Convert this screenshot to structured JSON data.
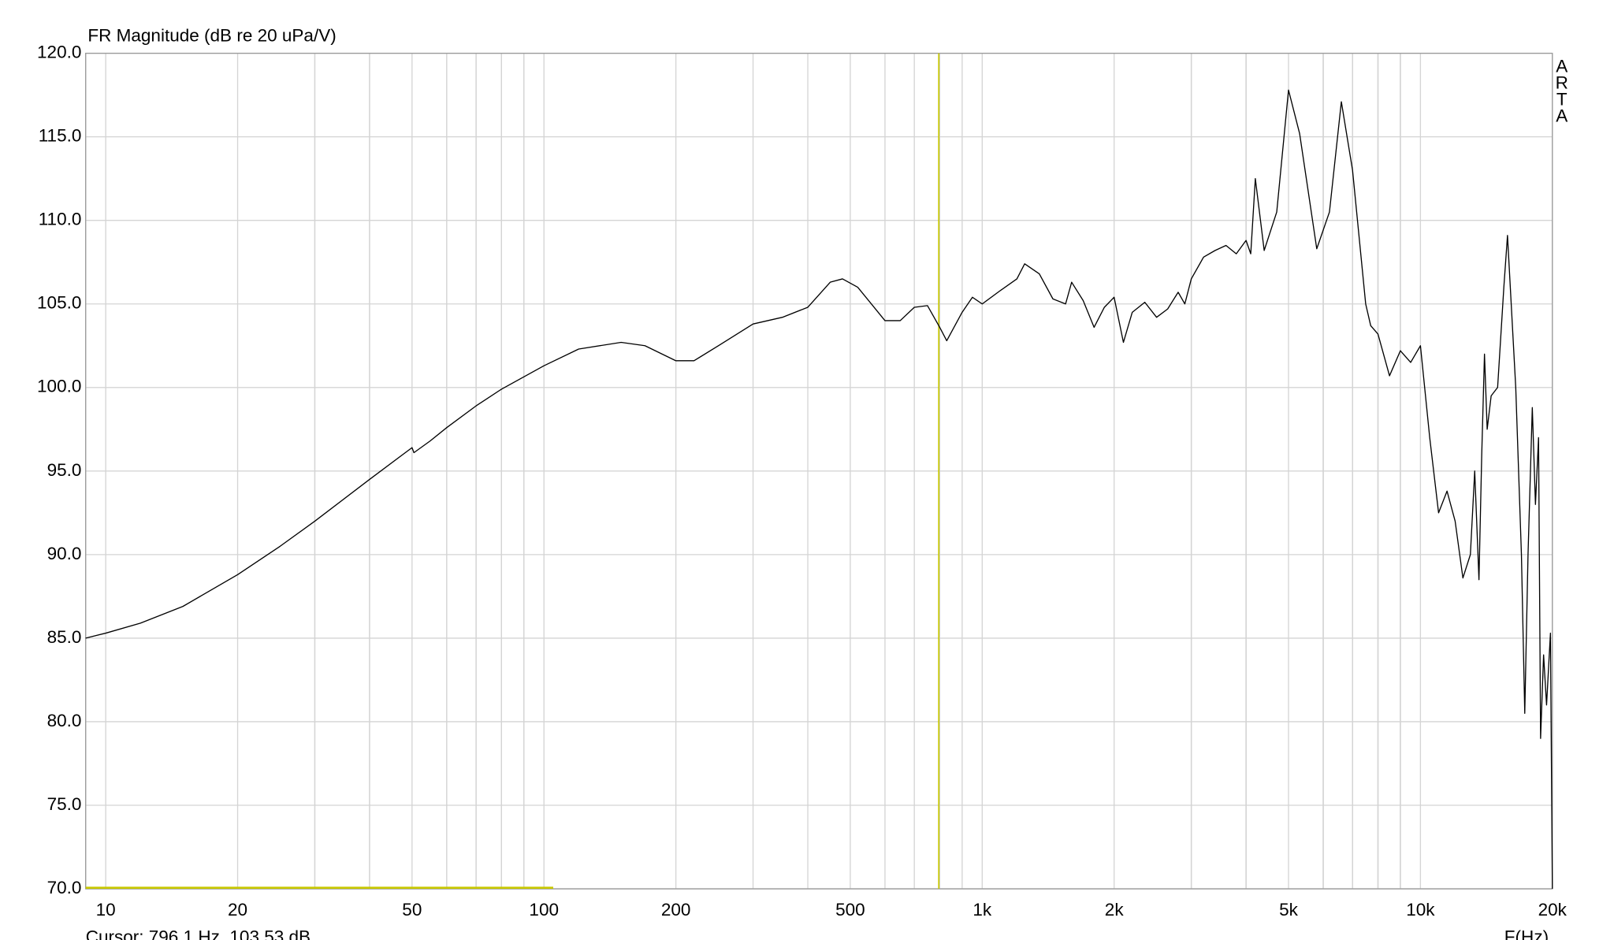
{
  "chart_data": {
    "type": "line",
    "title": "FR Magnitude (dB re 20 uPa/V)",
    "x_label": "F(Hz)",
    "watermark": "ARTA",
    "log_x": true,
    "grid": true,
    "color": "#000000",
    "xlim": [
      9,
      20000
    ],
    "ylim": [
      70,
      120
    ],
    "xticks": [
      10,
      20,
      50,
      100,
      200,
      500,
      {
        "value": 1000,
        "label": "1k"
      },
      {
        "value": 2000,
        "label": "2k"
      },
      {
        "value": 5000,
        "label": "5k"
      },
      {
        "value": 10000,
        "label": "10k"
      },
      {
        "value": 20000,
        "label": "20k"
      }
    ],
    "xminor": [
      9,
      30,
      40,
      60,
      70,
      80,
      90,
      300,
      400,
      600,
      700,
      800,
      900,
      3000,
      4000,
      6000,
      7000,
      8000,
      9000,
      30,
      40,
      60,
      70,
      80,
      90,
      3000,
      4000,
      6000,
      7000,
      8000,
      9000,
      3000,
      4000,
      6000,
      7000,
      8000,
      9000
    ],
    "yticks": [
      {
        "value": 70,
        "label": "70.0"
      },
      {
        "value": 75,
        "label": "75.0"
      },
      {
        "value": 80,
        "label": "80.0"
      },
      {
        "value": 85,
        "label": "85.0"
      },
      {
        "value": 90,
        "label": "90.0"
      },
      {
        "value": 95,
        "label": "95.0"
      },
      {
        "value": 100,
        "label": "100.0"
      },
      {
        "value": 105,
        "label": "105.0"
      },
      {
        "value": 110,
        "label": "110.0"
      },
      {
        "value": 115,
        "label": "115.0"
      },
      {
        "value": 120,
        "label": "120.0"
      }
    ],
    "cursor": {
      "x": 796.1,
      "y": 103.53,
      "color": "#c8c800",
      "label": "Cursor:   796.1 Hz, 103.53 dB"
    },
    "range_marker": {
      "from": 9,
      "to": 105,
      "color": "#c8c800"
    },
    "x": [
      9,
      10,
      12,
      15,
      20,
      25,
      30,
      40,
      50,
      50.5,
      55,
      60,
      70,
      80,
      100,
      120,
      150,
      170,
      200,
      220,
      250,
      300,
      350,
      400,
      450,
      480,
      520,
      600,
      650,
      700,
      750,
      800,
      830,
      900,
      950,
      1000,
      1100,
      1200,
      1250,
      1350,
      1450,
      1550,
      1600,
      1700,
      1800,
      1900,
      2000,
      2100,
      2200,
      2350,
      2500,
      2650,
      2800,
      2900,
      3000,
      3200,
      3400,
      3600,
      3800,
      4000,
      4100,
      4200,
      4400,
      4700,
      5000,
      5300,
      5800,
      6200,
      6600,
      7000,
      7500,
      7700,
      8000,
      8500,
      9000,
      9500,
      10000,
      10500,
      11000,
      11500,
      12000,
      12500,
      13000,
      13300,
      13600,
      13800,
      14000,
      14200,
      14500,
      15000,
      15500,
      15800,
      16500,
      17000,
      17300,
      17600,
      18000,
      18300,
      18600,
      18800,
      19100,
      19400,
      19800,
      20000
    ],
    "values": [
      85.0,
      85.3,
      85.9,
      86.9,
      88.8,
      90.5,
      92.0,
      94.5,
      96.4,
      96.1,
      96.8,
      97.6,
      98.9,
      99.9,
      101.3,
      102.3,
      102.7,
      102.5,
      101.6,
      101.6,
      102.5,
      103.8,
      104.2,
      104.8,
      106.3,
      106.5,
      106.0,
      104.0,
      104.0,
      104.8,
      104.9,
      103.6,
      102.8,
      104.5,
      105.4,
      105.0,
      105.8,
      106.5,
      107.4,
      106.8,
      105.3,
      105.0,
      106.3,
      105.2,
      103.6,
      104.8,
      105.4,
      102.7,
      104.5,
      105.1,
      104.2,
      104.7,
      105.7,
      105.0,
      106.5,
      107.8,
      108.2,
      108.5,
      108.0,
      108.8,
      108.0,
      112.5,
      108.2,
      110.5,
      117.8,
      115.2,
      108.3,
      110.5,
      117.1,
      113.0,
      105.0,
      103.7,
      103.2,
      100.7,
      102.2,
      101.5,
      102.5,
      97.0,
      92.5,
      93.8,
      92.0,
      88.6,
      90.0,
      95.0,
      88.5,
      96.0,
      102.0,
      97.5,
      99.5,
      100.0,
      106.0,
      109.1,
      100.0,
      90.0,
      80.5,
      90.0,
      98.8,
      93.0,
      97.0,
      79.0,
      84.0,
      81.0,
      85.3,
      70.0
    ]
  }
}
